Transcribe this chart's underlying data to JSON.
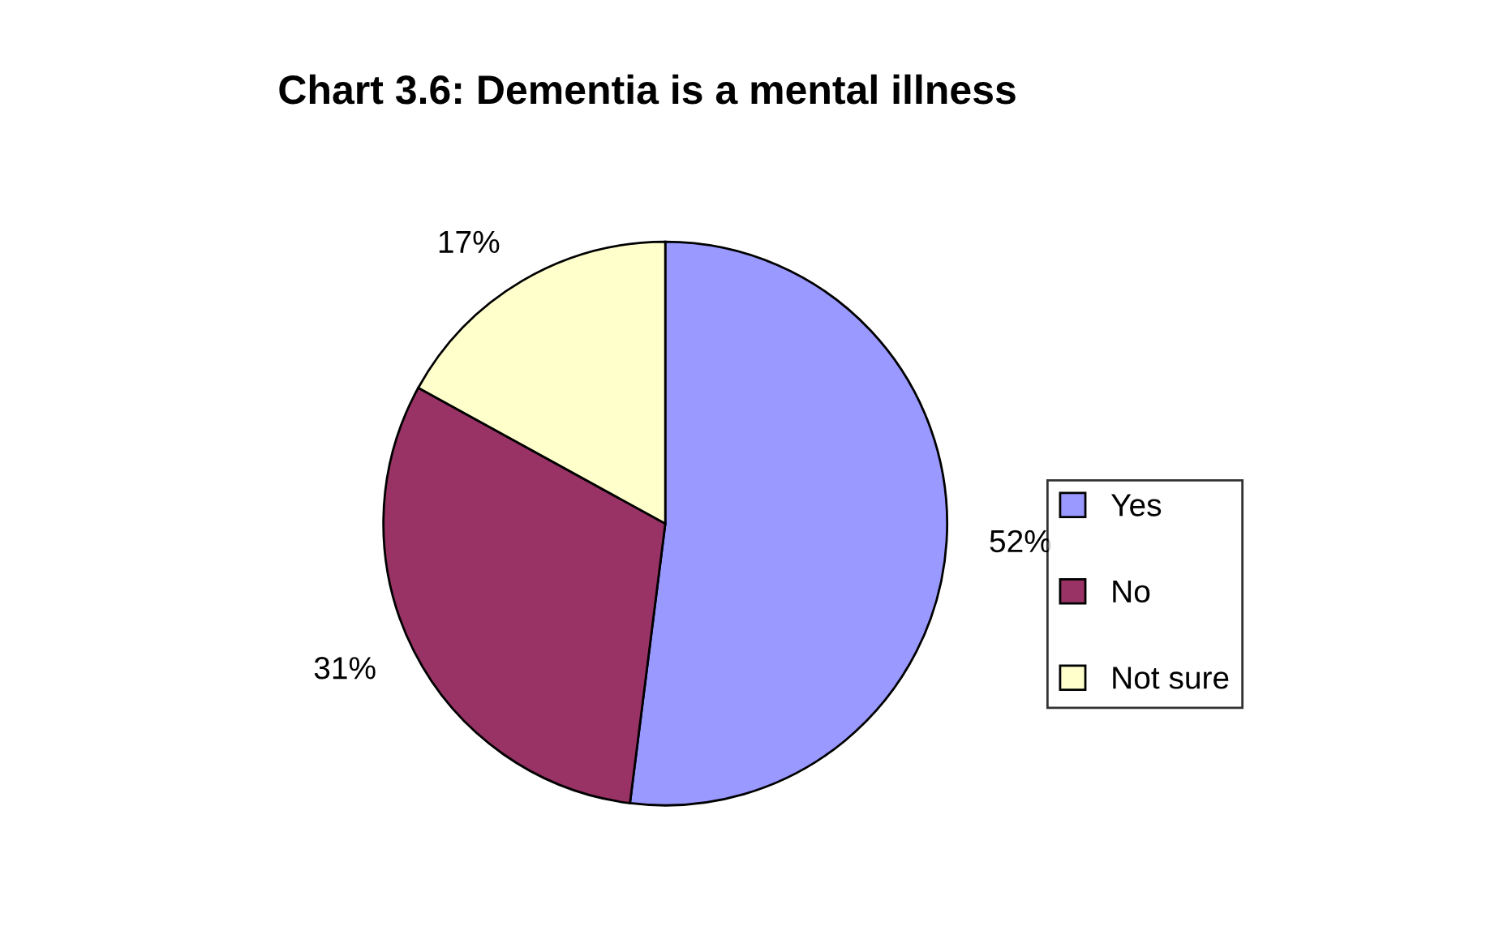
{
  "chart_data": {
    "type": "pie",
    "title": "Chart 3.6: Dementia is a mental illness",
    "categories": [
      "Yes",
      "No",
      "Not sure"
    ],
    "values": [
      52,
      31,
      17
    ],
    "colors": [
      "#9999ff",
      "#993366",
      "#ffffcc"
    ],
    "value_labels": [
      "52%",
      "31%",
      "17%"
    ],
    "legend": "right"
  }
}
